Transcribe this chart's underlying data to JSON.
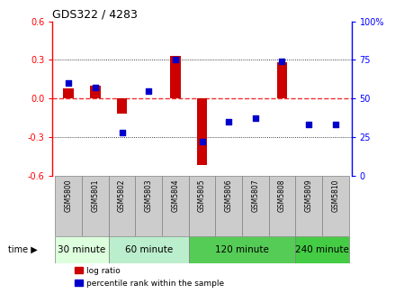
{
  "title": "GDS322 / 4283",
  "samples": [
    "GSM5800",
    "GSM5801",
    "GSM5802",
    "GSM5803",
    "GSM5804",
    "GSM5805",
    "GSM5806",
    "GSM5807",
    "GSM5808",
    "GSM5809",
    "GSM5810"
  ],
  "log_ratio": [
    0.08,
    0.1,
    -0.12,
    0.0,
    0.33,
    -0.52,
    0.0,
    0.0,
    0.28,
    0.0,
    0.0
  ],
  "percentile": [
    60,
    57,
    28,
    55,
    75,
    22,
    35,
    37,
    74,
    33,
    33
  ],
  "time_groups": [
    {
      "label": "30 minute",
      "start": 0,
      "end": 1,
      "color": "#ddffdd"
    },
    {
      "label": "60 minute",
      "start": 2,
      "end": 4,
      "color": "#bbeecc"
    },
    {
      "label": "120 minute",
      "start": 5,
      "end": 8,
      "color": "#55cc55"
    },
    {
      "label": "240 minute",
      "start": 9,
      "end": 10,
      "color": "#44cc44"
    }
  ],
  "time_group_spans": [
    {
      "label": "30 minute",
      "cols": [
        0,
        1
      ],
      "color": "#ddffdd"
    },
    {
      "label": "60 minute",
      "cols": [
        2,
        3,
        4
      ],
      "color": "#bbeecc"
    },
    {
      "label": "120 minute",
      "cols": [
        5,
        6,
        7,
        8
      ],
      "color": "#55cc55"
    },
    {
      "label": "240 minute",
      "cols": [
        9,
        10
      ],
      "color": "#44cc44"
    }
  ],
  "ylim": [
    -0.6,
    0.6
  ],
  "y2lim": [
    0,
    100
  ],
  "yticks": [
    -0.6,
    -0.3,
    0.0,
    0.3,
    0.6
  ],
  "y2ticks": [
    0,
    25,
    50,
    75,
    100
  ],
  "bar_color": "#cc0000",
  "dot_color": "#0000cc",
  "zero_line_color": "#ee3333",
  "grid_color": "#000000",
  "bg_color": "#ffffff",
  "sample_box_color": "#cccccc"
}
